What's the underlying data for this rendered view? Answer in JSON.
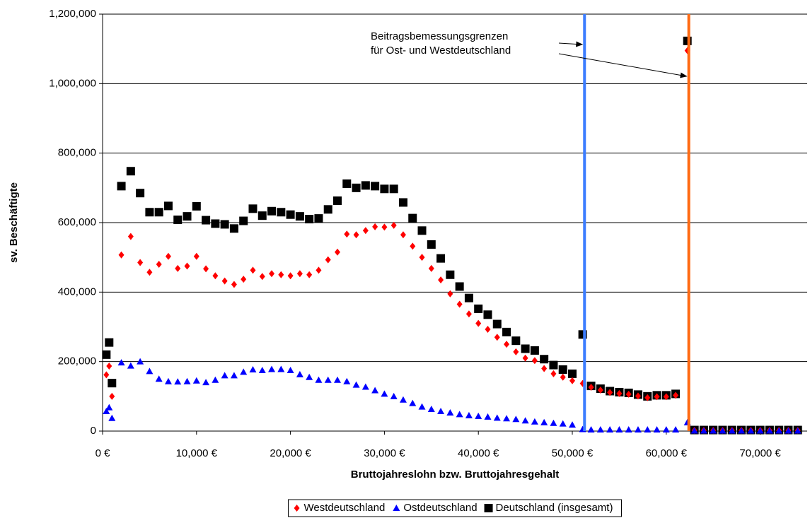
{
  "chart_data": {
    "type": "scatter",
    "x_label": "Bruttojahreslohn bzw. Bruttojahresgehalt",
    "y_label": "sv. Beschäftigte",
    "annotation": [
      "Beitragsbemessungsgrenzen",
      "für Ost- und Westdeutschland"
    ],
    "xlim": [
      0,
      75000
    ],
    "ylim": [
      0,
      1200000
    ],
    "xticks": [
      {
        "value": 0,
        "label": "0 €"
      },
      {
        "value": 10000,
        "label": "10,000 €"
      },
      {
        "value": 20000,
        "label": "20,000 €"
      },
      {
        "value": 30000,
        "label": "30,000 €"
      },
      {
        "value": 40000,
        "label": "40,000 €"
      },
      {
        "value": 50000,
        "label": "50,000 €"
      },
      {
        "value": 60000,
        "label": "60,000 €"
      },
      {
        "value": 70000,
        "label": "70,000 €"
      }
    ],
    "yticks": [
      0,
      {
        "value": 200000,
        "label": "200,000"
      },
      {
        "value": 400000,
        "label": "400,000"
      },
      {
        "value": 600000,
        "label": "600,000"
      },
      {
        "value": 800000,
        "label": "800,000"
      },
      {
        "value": 1000000,
        "label": "1,000,000"
      },
      {
        "value": 1200000,
        "label": "1,200,000"
      }
    ],
    "grid": true,
    "vlines": [
      {
        "value": 51300,
        "color": "#3c7dff"
      },
      {
        "value": 62400,
        "color": "#ff6a13"
      }
    ],
    "x": [
      400,
      700,
      1000,
      2000,
      3000,
      4000,
      5000,
      6000,
      7000,
      8000,
      9000,
      10000,
      11000,
      12000,
      13000,
      14000,
      15000,
      16000,
      17000,
      18000,
      19000,
      20000,
      21000,
      22000,
      23000,
      24000,
      25000,
      26000,
      27000,
      28000,
      29000,
      30000,
      31000,
      32000,
      33000,
      34000,
      35000,
      36000,
      37000,
      38000,
      39000,
      40000,
      41000,
      42000,
      43000,
      44000,
      45000,
      46000,
      47000,
      48000,
      49000,
      50000,
      51100,
      52000,
      53000,
      54000,
      55000,
      56000,
      57000,
      58000,
      59000,
      60000,
      61000,
      62250,
      63000,
      64000,
      65000,
      66000,
      67000,
      68000,
      69000,
      70000,
      71000,
      72000,
      73000,
      74000
    ],
    "series": [
      {
        "name": "Deutschland (insgesamt)",
        "color": "#000000",
        "marker": "square",
        "values": [
          220000,
          255000,
          138000,
          705000,
          748000,
          685000,
          630000,
          630000,
          648000,
          608000,
          618000,
          647000,
          607000,
          597000,
          595000,
          583000,
          605000,
          640000,
          620000,
          633000,
          630000,
          623000,
          618000,
          610000,
          612000,
          638000,
          663000,
          712000,
          700000,
          707000,
          705000,
          697000,
          697000,
          658000,
          613000,
          577000,
          537000,
          497000,
          450000,
          416000,
          383000,
          352000,
          335000,
          308000,
          285000,
          260000,
          237000,
          232000,
          207000,
          190000,
          177000,
          165000,
          278000,
          130000,
          122000,
          115000,
          112000,
          110000,
          105000,
          100000,
          103000,
          103000,
          107000,
          1123000,
          3000,
          3000,
          3000,
          3000,
          3000,
          3000,
          3000,
          3000,
          3000,
          3000,
          3000,
          3000
        ]
      },
      {
        "name": "Westdeutschland",
        "color": "#ff0000",
        "marker": "diamond",
        "values": [
          162000,
          187000,
          100000,
          507000,
          560000,
          485000,
          457000,
          480000,
          503000,
          468000,
          475000,
          503000,
          467000,
          447000,
          432000,
          422000,
          437000,
          463000,
          445000,
          453000,
          450000,
          447000,
          453000,
          450000,
          463000,
          493000,
          515000,
          567000,
          565000,
          577000,
          588000,
          587000,
          592000,
          565000,
          532000,
          500000,
          468000,
          435000,
          395000,
          365000,
          337000,
          310000,
          293000,
          270000,
          250000,
          228000,
          210000,
          203000,
          180000,
          165000,
          155000,
          145000,
          137000,
          126000,
          118000,
          111000,
          108000,
          106000,
          101000,
          96000,
          99000,
          99000,
          103000,
          1095000,
          2000,
          2000,
          2000,
          2000,
          2000,
          2000,
          2000,
          2000,
          2000,
          2000,
          2000,
          2000
        ]
      },
      {
        "name": "Ostdeutschland",
        "color": "#0000ff",
        "marker": "triangle",
        "values": [
          57000,
          68000,
          37000,
          197000,
          188000,
          200000,
          172000,
          150000,
          143000,
          142000,
          143000,
          145000,
          140000,
          147000,
          160000,
          160000,
          170000,
          177000,
          175000,
          178000,
          178000,
          175000,
          163000,
          155000,
          147000,
          147000,
          147000,
          143000,
          133000,
          127000,
          117000,
          107000,
          100000,
          90000,
          80000,
          70000,
          63000,
          57000,
          53000,
          48000,
          45000,
          43000,
          41000,
          38000,
          36000,
          34000,
          30000,
          27000,
          25000,
          23000,
          21000,
          18000,
          5000,
          4000,
          4000,
          4000,
          4000,
          4000,
          4000,
          4000,
          4000,
          4000,
          4000,
          25000,
          1000,
          1000,
          1000,
          1000,
          1000,
          1000,
          1000,
          1000,
          1000,
          1000,
          1000,
          1000
        ]
      }
    ],
    "legend_order": [
      1,
      2,
      0
    ]
  }
}
